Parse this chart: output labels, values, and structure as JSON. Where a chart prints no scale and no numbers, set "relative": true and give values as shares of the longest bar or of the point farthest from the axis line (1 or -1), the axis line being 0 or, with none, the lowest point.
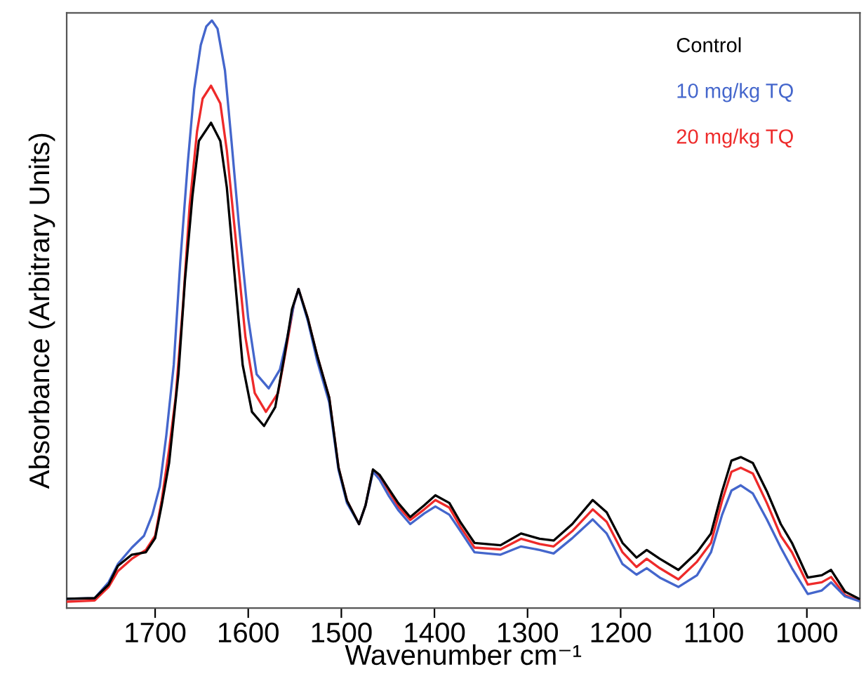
{
  "chart_data": {
    "type": "line",
    "relative": true,
    "xlabel": "Wavenumber cm⁻¹",
    "ylabel": "Absorbance (Arbitrary Units)",
    "xlim": [
      1795,
      943
    ],
    "xticks": [
      1700,
      1600,
      1500,
      1400,
      1300,
      1200,
      1100,
      1000
    ],
    "legend": "top right",
    "series": [
      {
        "name": "Control",
        "color": "#000000",
        "x": [
          1794,
          1765,
          1750,
          1740,
          1725,
          1710,
          1700,
          1693,
          1685,
          1675,
          1668,
          1660,
          1653,
          1640,
          1630,
          1623,
          1615,
          1606,
          1596,
          1583,
          1571,
          1561,
          1553,
          1546,
          1536,
          1526,
          1513,
          1503,
          1494,
          1481,
          1474,
          1466,
          1459,
          1449,
          1439,
          1426,
          1411,
          1399,
          1384,
          1372,
          1357,
          1329,
          1307,
          1287,
          1272,
          1252,
          1230,
          1215,
          1198,
          1183,
          1172,
          1158,
          1138,
          1118,
          1103,
          1091,
          1081,
          1071,
          1058,
          1043,
          1028,
          1016,
          999,
          984,
          974,
          959,
          944
        ],
        "values": [
          0.016,
          0.017,
          0.04,
          0.072,
          0.091,
          0.095,
          0.119,
          0.175,
          0.247,
          0.398,
          0.557,
          0.7,
          0.795,
          0.826,
          0.795,
          0.716,
          0.573,
          0.414,
          0.334,
          0.31,
          0.342,
          0.43,
          0.509,
          0.543,
          0.493,
          0.43,
          0.358,
          0.239,
          0.183,
          0.143,
          0.175,
          0.236,
          0.227,
          0.203,
          0.179,
          0.155,
          0.175,
          0.192,
          0.179,
          0.146,
          0.111,
          0.107,
          0.127,
          0.118,
          0.115,
          0.143,
          0.184,
          0.163,
          0.111,
          0.086,
          0.099,
          0.084,
          0.065,
          0.095,
          0.127,
          0.199,
          0.251,
          0.257,
          0.247,
          0.199,
          0.143,
          0.111,
          0.052,
          0.056,
          0.065,
          0.028,
          0.016
        ]
      },
      {
        "name": "10 mg/kg TQ",
        "color": "#4466cc",
        "x": [
          1794,
          1765,
          1750,
          1740,
          1725,
          1712,
          1703,
          1695,
          1688,
          1680,
          1673,
          1665,
          1658,
          1651,
          1645,
          1639,
          1633,
          1625,
          1618,
          1610,
          1600,
          1591,
          1578,
          1566,
          1558,
          1551,
          1546,
          1536,
          1526,
          1513,
          1503,
          1494,
          1481,
          1474,
          1466,
          1459,
          1449,
          1439,
          1426,
          1411,
          1399,
          1384,
          1372,
          1357,
          1329,
          1307,
          1287,
          1272,
          1252,
          1230,
          1215,
          1198,
          1183,
          1172,
          1158,
          1138,
          1118,
          1103,
          1091,
          1081,
          1071,
          1058,
          1043,
          1028,
          1016,
          999,
          984,
          974,
          959,
          944
        ],
        "values": [
          0.016,
          0.017,
          0.044,
          0.075,
          0.103,
          0.123,
          0.159,
          0.207,
          0.294,
          0.414,
          0.589,
          0.756,
          0.883,
          0.958,
          0.99,
          1.0,
          0.986,
          0.915,
          0.795,
          0.652,
          0.493,
          0.398,
          0.374,
          0.406,
          0.461,
          0.517,
          0.543,
          0.489,
          0.421,
          0.35,
          0.235,
          0.179,
          0.143,
          0.175,
          0.232,
          0.219,
          0.191,
          0.167,
          0.143,
          0.161,
          0.173,
          0.159,
          0.131,
          0.095,
          0.091,
          0.105,
          0.099,
          0.093,
          0.119,
          0.151,
          0.127,
          0.075,
          0.057,
          0.068,
          0.052,
          0.036,
          0.056,
          0.095,
          0.159,
          0.2,
          0.209,
          0.195,
          0.151,
          0.103,
          0.068,
          0.024,
          0.03,
          0.044,
          0.02,
          0.012
        ]
      },
      {
        "name": "20 mg/kg TQ",
        "color": "#ee2a2a",
        "x": [
          1794,
          1765,
          1750,
          1740,
          1725,
          1710,
          1700,
          1693,
          1685,
          1678,
          1670,
          1663,
          1655,
          1649,
          1640,
          1630,
          1623,
          1613,
          1603,
          1593,
          1581,
          1568,
          1558,
          1551,
          1546,
          1536,
          1526,
          1513,
          1503,
          1494,
          1481,
          1474,
          1466,
          1459,
          1449,
          1439,
          1426,
          1411,
          1399,
          1384,
          1372,
          1357,
          1329,
          1307,
          1287,
          1272,
          1252,
          1230,
          1215,
          1198,
          1183,
          1172,
          1158,
          1138,
          1118,
          1103,
          1091,
          1081,
          1071,
          1058,
          1043,
          1028,
          1016,
          999,
          984,
          974,
          959,
          944
        ],
        "values": [
          0.011,
          0.013,
          0.036,
          0.063,
          0.084,
          0.099,
          0.123,
          0.183,
          0.27,
          0.358,
          0.517,
          0.684,
          0.811,
          0.867,
          0.889,
          0.859,
          0.779,
          0.621,
          0.461,
          0.366,
          0.334,
          0.366,
          0.453,
          0.517,
          0.543,
          0.493,
          0.43,
          0.358,
          0.239,
          0.183,
          0.143,
          0.175,
          0.235,
          0.223,
          0.199,
          0.173,
          0.15,
          0.168,
          0.184,
          0.171,
          0.138,
          0.103,
          0.1,
          0.118,
          0.109,
          0.105,
          0.131,
          0.168,
          0.147,
          0.095,
          0.07,
          0.084,
          0.068,
          0.049,
          0.079,
          0.111,
          0.183,
          0.232,
          0.239,
          0.229,
          0.179,
          0.123,
          0.095,
          0.04,
          0.044,
          0.053,
          0.022,
          0.013
        ]
      }
    ]
  }
}
